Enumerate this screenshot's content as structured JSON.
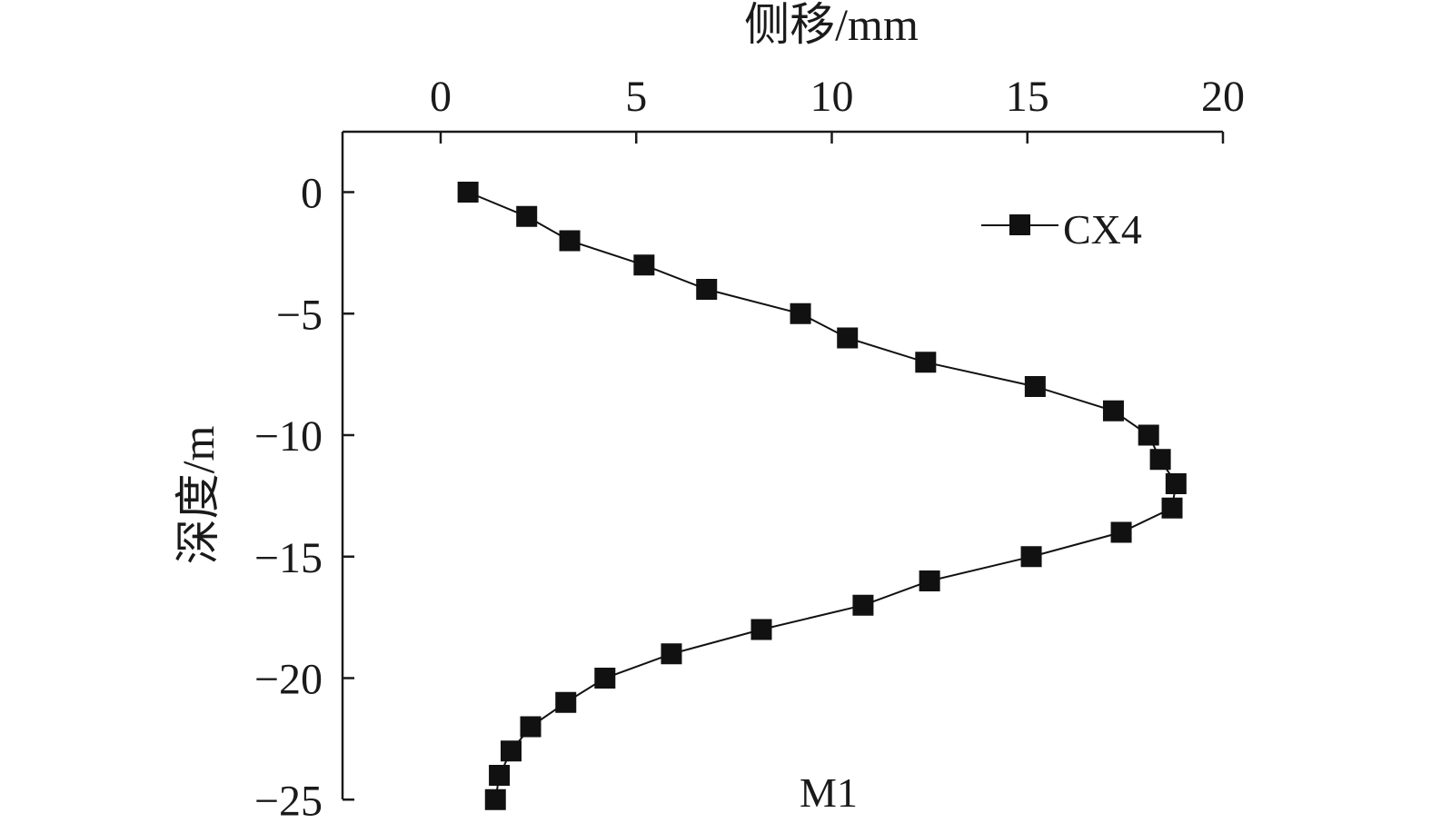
{
  "chart_data": {
    "type": "line",
    "xlabel": "侧移/mm",
    "ylabel": "深度/m",
    "annotation": "M1",
    "x_axis_position": "top",
    "xlim": [
      -2.5,
      20
    ],
    "ylim": [
      -25,
      2.5
    ],
    "xticks": [
      0,
      5,
      10,
      15,
      20
    ],
    "yticks": [
      0,
      -5,
      -10,
      -15,
      -20,
      -25
    ],
    "xtick_labels": [
      "0",
      "5",
      "10",
      "15",
      "20"
    ],
    "ytick_labels": [
      "0",
      "−5",
      "−10",
      "−15",
      "−20",
      "−25"
    ],
    "grid": false,
    "legend_position": "top-right",
    "colors": {
      "series": "#111111",
      "axis": "#1a1a1a"
    },
    "series": [
      {
        "name": "CX4",
        "marker": "square",
        "points": [
          {
            "x": 0.7,
            "y": 0
          },
          {
            "x": 2.2,
            "y": -1
          },
          {
            "x": 3.3,
            "y": -2
          },
          {
            "x": 5.2,
            "y": -3
          },
          {
            "x": 6.8,
            "y": -4
          },
          {
            "x": 9.2,
            "y": -5
          },
          {
            "x": 10.4,
            "y": -6
          },
          {
            "x": 12.4,
            "y": -7
          },
          {
            "x": 15.2,
            "y": -8
          },
          {
            "x": 17.2,
            "y": -9
          },
          {
            "x": 18.1,
            "y": -10
          },
          {
            "x": 18.4,
            "y": -11
          },
          {
            "x": 18.8,
            "y": -12
          },
          {
            "x": 18.7,
            "y": -13
          },
          {
            "x": 17.4,
            "y": -14
          },
          {
            "x": 15.1,
            "y": -15
          },
          {
            "x": 12.5,
            "y": -16
          },
          {
            "x": 10.8,
            "y": -17
          },
          {
            "x": 8.2,
            "y": -18
          },
          {
            "x": 5.9,
            "y": -19
          },
          {
            "x": 4.2,
            "y": -20
          },
          {
            "x": 3.2,
            "y": -21
          },
          {
            "x": 2.3,
            "y": -22
          },
          {
            "x": 1.8,
            "y": -23
          },
          {
            "x": 1.5,
            "y": -24
          },
          {
            "x": 1.4,
            "y": -25
          }
        ]
      }
    ]
  }
}
